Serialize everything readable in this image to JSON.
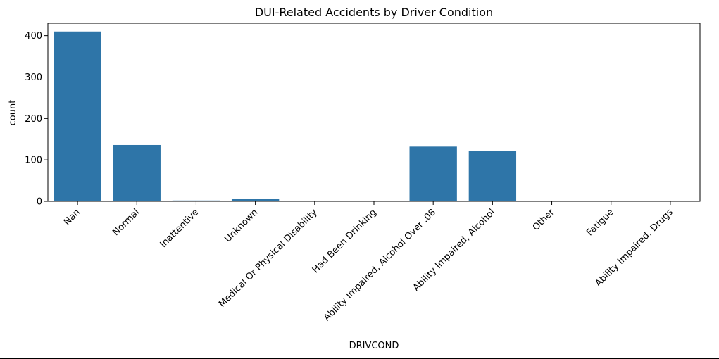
{
  "chart_data": {
    "type": "bar",
    "title": "DUI-Related Accidents by Driver Condition",
    "xlabel": "DRIVCOND",
    "ylabel": "count",
    "categories": [
      "Nan",
      "Normal",
      "Inattentive",
      "Unknown",
      "Medical Or Physical Disability",
      "Had Been Drinking",
      "Ability Impaired, Alcohol Over .08",
      "Ability Impaired, Alcohol",
      "Other",
      "Fatigue",
      "Ability Impaired, Drugs"
    ],
    "values": [
      410,
      136,
      2,
      6,
      0,
      1,
      132,
      121,
      0,
      0,
      0
    ],
    "ylim": [
      0,
      430
    ],
    "yticks": [
      0,
      100,
      200,
      300,
      400
    ],
    "grid": false,
    "legend": "none",
    "bar_color": "#2e75a8"
  }
}
